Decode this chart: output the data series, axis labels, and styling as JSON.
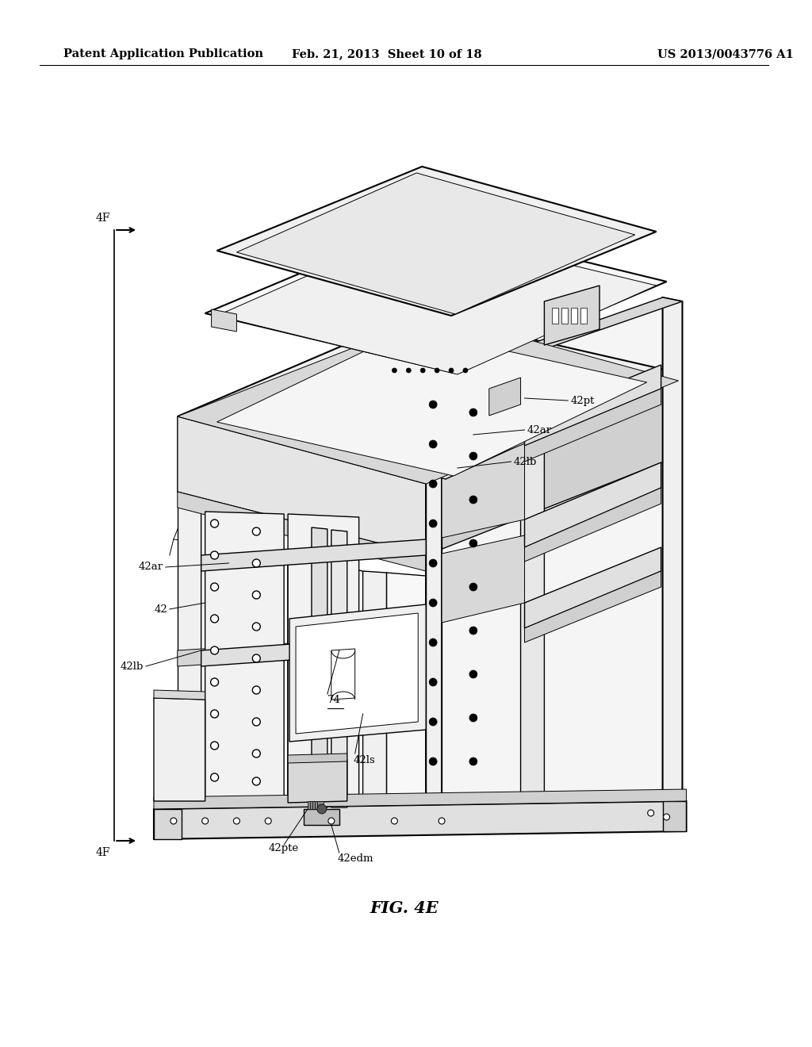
{
  "background_color": "#ffffff",
  "header_left": "Patent Application Publication",
  "header_center": "Feb. 21, 2013  Sheet 10 of 18",
  "header_right": "US 2013/0043776 A1",
  "header_fontsize": 10.5,
  "figure_caption": "FIG. 4E",
  "caption_fontsize": 15
}
